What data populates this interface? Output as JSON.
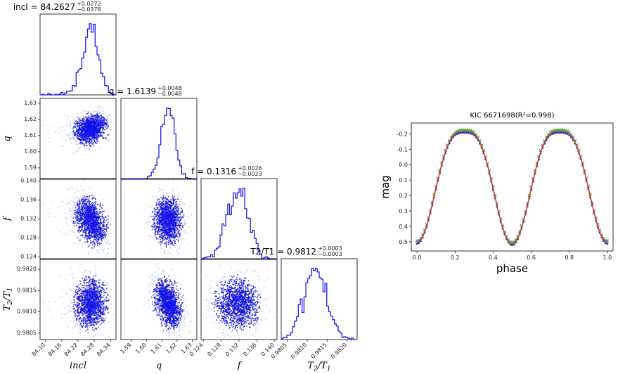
{
  "colors": {
    "hist": "#1a1aff",
    "scatter": "#1010e8",
    "scatter_faint": "#9a9af0",
    "model": "#d62728",
    "obs_blue": "#1f2fd6",
    "obs_green": "#2ca02c"
  },
  "chart_data": [
    {
      "type": "corner",
      "parameters": [
        {
          "key": "incl",
          "label": "incl",
          "title": "incl = 84.2627",
          "value": 84.2627,
          "plus": "+0.0272",
          "minus": "−0.0378",
          "range": [
            84.08,
            84.36
          ],
          "ticks": [
            "84.10",
            "84.16",
            "84.22",
            "84.28",
            "84.34"
          ],
          "tick_values": [
            84.1,
            84.16,
            84.22,
            84.28,
            84.34
          ]
        },
        {
          "key": "q",
          "label": "q",
          "title": "q = 1.6139",
          "value": 1.6139,
          "plus": "+0.0048",
          "minus": "−0.0048",
          "range": [
            1.583,
            1.633
          ],
          "ticks": [
            "1.59",
            "1.60",
            "1.61",
            "1.62",
            "1.63"
          ],
          "tick_values": [
            1.59,
            1.6,
            1.61,
            1.62,
            1.63
          ]
        },
        {
          "key": "f",
          "label": "f",
          "title": "f = 0.1316",
          "value": 0.1316,
          "plus": "+0.0026",
          "minus": "−0.0023",
          "range": [
            0.1235,
            0.1405
          ],
          "ticks": [
            "0.124",
            "0.128",
            "0.132",
            "0.136",
            "0.140"
          ],
          "tick_values": [
            0.124,
            0.128,
            0.132,
            0.136,
            0.14
          ]
        },
        {
          "key": "t",
          "label": "T2/T1",
          "title": "T2/T1 = 0.9812",
          "value": 0.9812,
          "plus": "+0.0003",
          "minus": "−0.0003",
          "range": [
            0.98035,
            0.98225
          ],
          "ticks": [
            "0.9805",
            "0.9810",
            "0.9815",
            "0.9820"
          ],
          "tick_values": [
            0.9805,
            0.981,
            0.9815,
            0.982
          ]
        }
      ]
    },
    {
      "type": "line",
      "title": "KIC 6671698",
      "title_fit": "(R²=0.998)",
      "xlabel": "phase",
      "ylabel": "mag",
      "xlim": [
        -0.03,
        1.03
      ],
      "ylim": [
        -0.27,
        0.56
      ],
      "y_inverted": true,
      "xticks": [
        "0.0",
        "0.2",
        "0.4",
        "0.6",
        "0.8",
        "1.0"
      ],
      "yticks": [
        "-0.2",
        "-0.1",
        "0.0",
        "0.1",
        "0.2",
        "0.3",
        "0.4",
        "0.5"
      ],
      "model": {
        "min_mag": -0.215,
        "primary_min_mag": 0.505,
        "secondary_min_mag": 0.515,
        "max_phases": [
          0.25,
          0.75
        ]
      }
    }
  ]
}
